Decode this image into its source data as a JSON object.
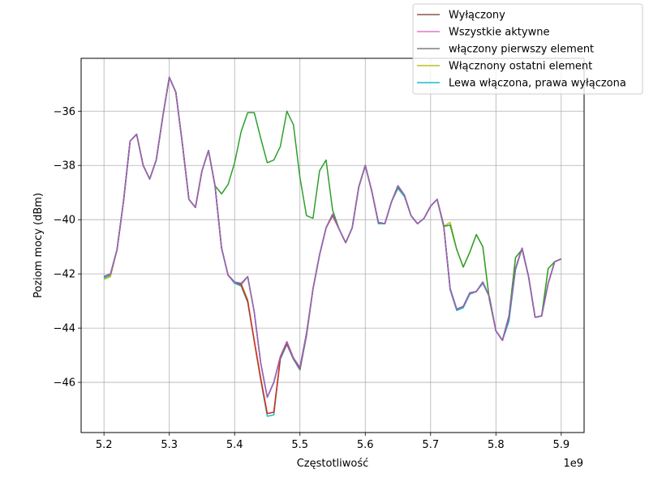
{
  "chart_data": {
    "type": "line",
    "xlabel": "Częstotliwość",
    "ylabel": "Poziom mocy (dBm)",
    "x_offset_label": "1e9",
    "xlim": [
      5.165,
      5.935
    ],
    "ylim": [
      -47.85,
      -34.05
    ],
    "x_ticks": [
      5.2,
      5.3,
      5.4,
      5.5,
      5.6,
      5.7,
      5.8,
      5.9
    ],
    "x_tick_labels": [
      "5.2",
      "5.3",
      "5.4",
      "5.5",
      "5.6",
      "5.7",
      "5.8",
      "5.9"
    ],
    "y_ticks": [
      -46,
      -44,
      -42,
      -40,
      -38,
      -36
    ],
    "y_tick_labels": [
      "−46",
      "−44",
      "−42",
      "−40",
      "−38",
      "−36"
    ],
    "grid": true,
    "legend_position": "top-right",
    "x": [
      5.2,
      5.21,
      5.22,
      5.23,
      5.24,
      5.25,
      5.26,
      5.27,
      5.28,
      5.29,
      5.3,
      5.31,
      5.32,
      5.33,
      5.34,
      5.35,
      5.36,
      5.37,
      5.38,
      5.39,
      5.4,
      5.41,
      5.42,
      5.43,
      5.44,
      5.45,
      5.46,
      5.47,
      5.48,
      5.49,
      5.5,
      5.51,
      5.52,
      5.53,
      5.54,
      5.55,
      5.56,
      5.57,
      5.58,
      5.59,
      5.6,
      5.61,
      5.62,
      5.63,
      5.64,
      5.65,
      5.66,
      5.67,
      5.68,
      5.69,
      5.7,
      5.71,
      5.72,
      5.73,
      5.74,
      5.75,
      5.76,
      5.77,
      5.78,
      5.79,
      5.8,
      5.81,
      5.82,
      5.83,
      5.84,
      5.85,
      5.86,
      5.87,
      5.88,
      5.89,
      5.9
    ],
    "series": [
      {
        "name": "Lewa włączona, prawa wyłączona",
        "color": "#17becf",
        "values": [
          -42.15,
          -42.05,
          -41.1,
          -39.3,
          -37.1,
          -36.85,
          -38.0,
          -38.5,
          -37.8,
          -36.2,
          -34.75,
          -35.3,
          -37.2,
          -39.25,
          -39.55,
          -38.2,
          -37.45,
          -38.75,
          -41.05,
          -42.05,
          -42.35,
          -42.45,
          -43.05,
          -44.5,
          -45.95,
          -47.25,
          -47.2,
          -45.15,
          -44.6,
          -45.15,
          -45.55,
          -44.3,
          -42.55,
          -41.3,
          -40.3,
          -39.85,
          -40.35,
          -40.85,
          -40.3,
          -38.8,
          -38.0,
          -38.95,
          -40.15,
          -40.15,
          -39.35,
          -38.85,
          -39.15,
          -39.85,
          -40.15,
          -39.95,
          -39.5,
          -39.25,
          -40.2,
          -42.6,
          -43.35,
          -43.25,
          -42.75,
          -42.65,
          -42.35,
          -42.85,
          -44.1,
          -44.45,
          -43.75,
          -41.85,
          -41.05,
          -42.1,
          -43.6,
          -43.55,
          -42.35,
          -41.55,
          -41.45
        ]
      },
      {
        "name": "Włącznony ostatni element",
        "color": "#bcbd22",
        "values": [
          -42.2,
          -42.1,
          -41.1,
          -39.3,
          -37.1,
          -36.85,
          -38.0,
          -38.5,
          -37.8,
          -36.2,
          -34.75,
          -35.3,
          -37.2,
          -39.25,
          -39.55,
          -38.2,
          -37.45,
          -38.75,
          -41.05,
          -42.05,
          -42.3,
          -42.35,
          -42.95,
          -44.5,
          -45.9,
          -47.15,
          -47.1,
          -45.1,
          -44.55,
          -45.1,
          -45.5,
          -44.25,
          -42.55,
          -41.3,
          -40.3,
          -39.85,
          -40.35,
          -40.85,
          -40.3,
          -38.8,
          -38.0,
          -38.95,
          -40.1,
          -40.15,
          -39.35,
          -38.8,
          -39.1,
          -39.85,
          -40.15,
          -39.95,
          -39.5,
          -39.25,
          -40.25,
          -40.1,
          -41.1,
          -41.75,
          -41.2,
          -40.55,
          -41.0,
          -42.95,
          -44.1,
          -44.45,
          -43.55,
          -41.4,
          -41.1,
          -42.1,
          -43.6,
          -43.55,
          -41.8,
          -41.55,
          -41.45
        ]
      },
      {
        "name": "włączony pierwszy element",
        "color": "#7f7f7f",
        "values": [
          -42.1,
          -42.0,
          -41.1,
          -39.3,
          -37.1,
          -36.85,
          -38.0,
          -38.5,
          -37.8,
          -36.2,
          -34.75,
          -35.3,
          -37.2,
          -39.25,
          -39.55,
          -38.2,
          -37.45,
          -38.75,
          -41.05,
          -42.05,
          -42.3,
          -42.4,
          -42.1,
          -43.4,
          -45.3,
          -46.55,
          -46.0,
          -45.05,
          -44.6,
          -45.15,
          -45.45,
          -44.2,
          -42.55,
          -41.3,
          -40.3,
          -39.8,
          -40.35,
          -40.85,
          -40.3,
          -38.8,
          -38.0,
          -38.95,
          -40.1,
          -40.15,
          -39.35,
          -38.75,
          -39.1,
          -39.85,
          -40.15,
          -39.95,
          -39.5,
          -39.25,
          -40.2,
          -42.55,
          -43.3,
          -43.2,
          -42.7,
          -42.65,
          -42.3,
          -42.85,
          -44.1,
          -44.45,
          -43.55,
          -41.8,
          -41.05,
          -42.1,
          -43.6,
          -43.55,
          -42.35,
          -41.55,
          -41.45
        ]
      },
      {
        "name": "Wszystkie aktywne",
        "color": "#e377c2",
        "values": [
          -42.1,
          -42.0,
          -41.1,
          -39.3,
          -37.1,
          -36.85,
          -38.0,
          -38.5,
          -37.8,
          -36.2,
          -34.75,
          -35.3,
          -37.2,
          -39.25,
          -39.55,
          -38.2,
          -37.45,
          -38.75,
          -41.05,
          -42.05,
          -42.3,
          -42.35,
          -42.1,
          -43.4,
          -45.3,
          -46.55,
          -46.0,
          -45.05,
          -44.5,
          -45.1,
          -45.45,
          -44.2,
          -42.55,
          -41.3,
          -40.3,
          -39.8,
          -40.35,
          -40.85,
          -40.3,
          -38.8,
          -38.0,
          -38.95,
          -40.1,
          -40.15,
          -39.35,
          -38.75,
          -39.1,
          -39.85,
          -40.15,
          -39.95,
          -39.5,
          -39.25,
          -40.2,
          -42.55,
          -43.3,
          -43.2,
          -42.7,
          -42.65,
          -42.3,
          -42.85,
          -44.1,
          -44.45,
          -43.55,
          -41.8,
          -41.05,
          -42.1,
          -43.6,
          -43.55,
          -42.35,
          -41.55,
          -41.45
        ]
      },
      {
        "name": "",
        "color": "#2ca02c",
        "values": [
          -42.1,
          -42.0,
          -41.1,
          -39.3,
          -37.1,
          -36.85,
          -38.0,
          -38.5,
          -37.8,
          -36.2,
          -34.75,
          -35.3,
          -37.2,
          -39.25,
          -39.55,
          -38.2,
          -37.45,
          -38.75,
          -39.05,
          -38.7,
          -37.9,
          -36.75,
          -36.05,
          -36.05,
          -37.0,
          -37.9,
          -37.8,
          -37.3,
          -36.0,
          -36.5,
          -38.45,
          -39.85,
          -39.95,
          -38.2,
          -37.8,
          -39.65,
          -40.35,
          -40.85,
          -40.3,
          -38.8,
          -38.0,
          -38.95,
          -40.1,
          -40.15,
          -39.35,
          -38.8,
          -39.1,
          -39.85,
          -40.15,
          -39.95,
          -39.5,
          -39.25,
          -40.25,
          -40.2,
          -41.1,
          -41.75,
          -41.2,
          -40.55,
          -41.0,
          -42.95,
          -44.1,
          -44.45,
          -43.55,
          -41.4,
          -41.1,
          -42.1,
          -43.6,
          -43.55,
          -41.8,
          -41.55,
          -41.45
        ]
      },
      {
        "name": "",
        "color": "#d62728",
        "values": [
          -42.1,
          -42.0,
          -41.1,
          -39.3,
          -37.1,
          -36.85,
          -38.0,
          -38.5,
          -37.8,
          -36.2,
          -34.75,
          -35.3,
          -37.2,
          -39.25,
          -39.55,
          -38.2,
          -37.45,
          -38.75,
          -41.05,
          -42.05,
          -42.3,
          -42.4,
          -43.0,
          -44.45,
          -45.85,
          -47.15,
          -47.1,
          -45.1,
          -44.55,
          -45.1,
          -45.5,
          -44.25,
          -42.55,
          -41.3,
          -40.3,
          -39.85,
          -40.35,
          -40.85,
          -40.3,
          -38.8,
          -38.0,
          -38.95,
          -40.1,
          -40.15,
          -39.35,
          -38.75,
          -39.1,
          -39.85,
          -40.15,
          -39.95,
          -39.5,
          -39.25,
          -40.2,
          -42.55,
          -43.3,
          -43.2,
          -42.7,
          -42.65,
          -42.3,
          -42.85,
          -44.1,
          -44.45,
          -43.6,
          -41.8,
          -41.05,
          -42.1,
          -43.6,
          -43.55,
          -42.35,
          -41.55,
          -41.45
        ]
      },
      {
        "name": "Wyłączony",
        "color": "#8c564b",
        "values": [
          -42.1,
          -42.0,
          -41.1,
          -39.3,
          -37.1,
          -36.85,
          -38.0,
          -38.5,
          -37.8,
          -36.2,
          -34.75,
          -35.3,
          -37.2,
          -39.25,
          -39.55,
          -38.2,
          -37.45,
          -38.75,
          -41.05,
          -42.05,
          -42.3,
          -42.35,
          -42.1,
          -43.4,
          -45.3,
          -46.55,
          -46.0,
          -45.05,
          -44.5,
          -45.1,
          -45.45,
          -44.2,
          -42.55,
          -41.3,
          -40.3,
          -39.8,
          -40.35,
          -40.85,
          -40.3,
          -38.8,
          -38.0,
          -38.95,
          -40.1,
          -40.15,
          -39.35,
          -38.75,
          -39.1,
          -39.85,
          -40.15,
          -39.95,
          -39.5,
          -39.25,
          -40.2,
          -42.55,
          -43.3,
          -43.2,
          -42.7,
          -42.65,
          -42.3,
          -42.85,
          -44.1,
          -44.45,
          -43.55,
          -41.8,
          -41.05,
          -42.1,
          -43.6,
          -43.55,
          -42.35,
          -41.55,
          -41.45
        ]
      },
      {
        "name": "",
        "color": "#9467bd",
        "values": [
          -42.1,
          -42.0,
          -41.1,
          -39.3,
          -37.1,
          -36.85,
          -38.0,
          -38.5,
          -37.8,
          -36.2,
          -34.75,
          -35.3,
          -37.2,
          -39.25,
          -39.55,
          -38.2,
          -37.45,
          -38.75,
          -41.05,
          -42.05,
          -42.3,
          -42.35,
          -42.1,
          -43.4,
          -45.3,
          -46.55,
          -46.0,
          -45.05,
          -44.5,
          -45.1,
          -45.45,
          -44.2,
          -42.55,
          -41.3,
          -40.3,
          -39.8,
          -40.35,
          -40.85,
          -40.3,
          -38.8,
          -38.0,
          -38.95,
          -40.1,
          -40.15,
          -39.35,
          -38.75,
          -39.1,
          -39.85,
          -40.15,
          -39.95,
          -39.5,
          -39.25,
          -40.2,
          -42.55,
          -43.3,
          -43.2,
          -42.7,
          -42.65,
          -42.3,
          -42.85,
          -44.1,
          -44.45,
          -43.55,
          -41.8,
          -41.05,
          -42.1,
          -43.6,
          -43.55,
          -42.35,
          -41.55,
          -41.45
        ]
      }
    ],
    "legend": [
      {
        "label": "Wyłączony",
        "color": "#8c564b"
      },
      {
        "label": "Wszystkie aktywne",
        "color": "#e377c2"
      },
      {
        "label": "włączony pierwszy element",
        "color": "#7f7f7f"
      },
      {
        "label": "Włącznony ostatni element",
        "color": "#bcbd22"
      },
      {
        "label": "Lewa włączona, prawa wyłączona",
        "color": "#17becf"
      }
    ]
  }
}
